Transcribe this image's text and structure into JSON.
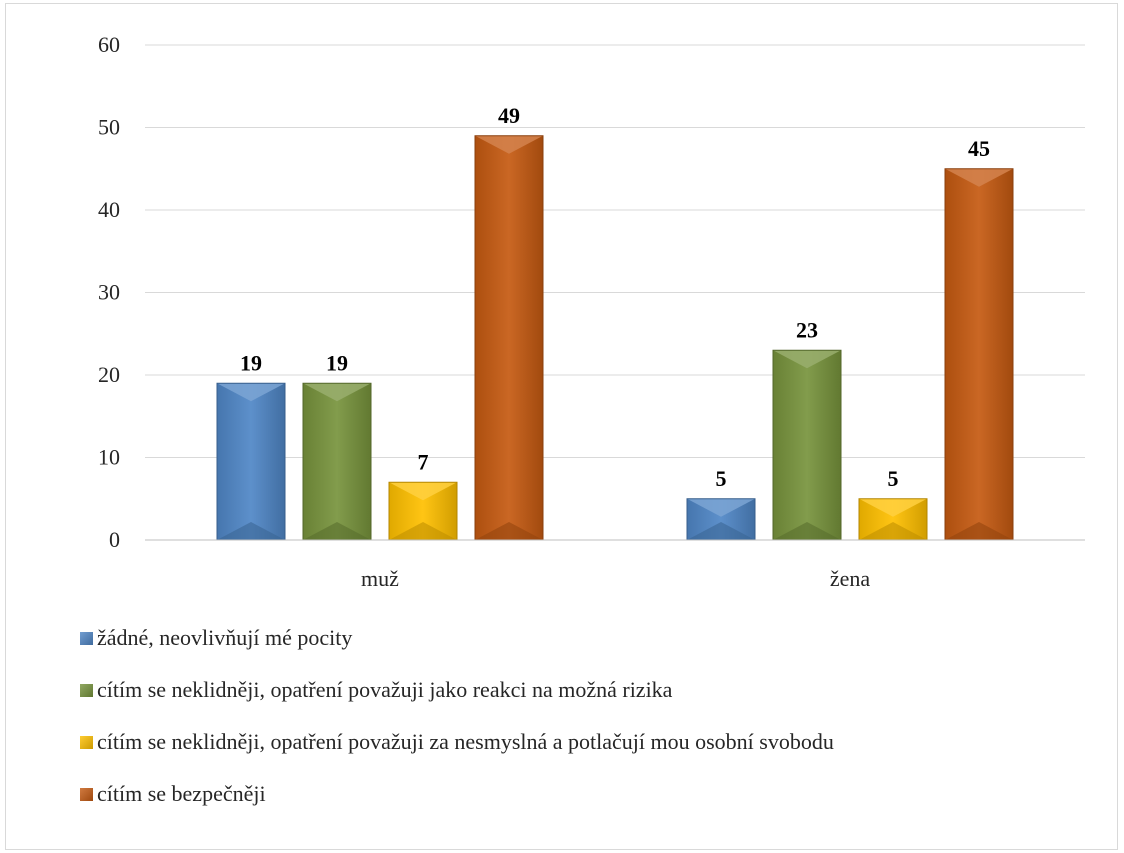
{
  "chart_data": {
    "type": "bar",
    "categories": [
      "muž",
      "žena"
    ],
    "series": [
      {
        "name": "žádné, neovlivňují mé pocity",
        "values": [
          19,
          5
        ],
        "color": "#4f86c6"
      },
      {
        "name": "cítím se neklidněji, opatření považuji jako reakci na možná rizika",
        "values": [
          19,
          23
        ],
        "color": "#77933c"
      },
      {
        "name": "cítím se neklidněji, opatření považuji za nesmyslná a potlačují mou osobní svobodu",
        "values": [
          7,
          5
        ],
        "color": "#ffc000"
      },
      {
        "name": "cítím se bezpečněji",
        "values": [
          49,
          45
        ],
        "color": "#c55a11"
      }
    ],
    "yticks": [
      "0",
      "10",
      "20",
      "30",
      "40",
      "50",
      "60"
    ],
    "ylim": [
      0,
      60
    ],
    "grid": true,
    "legend_position": "bottom-left",
    "data_labels": true
  }
}
